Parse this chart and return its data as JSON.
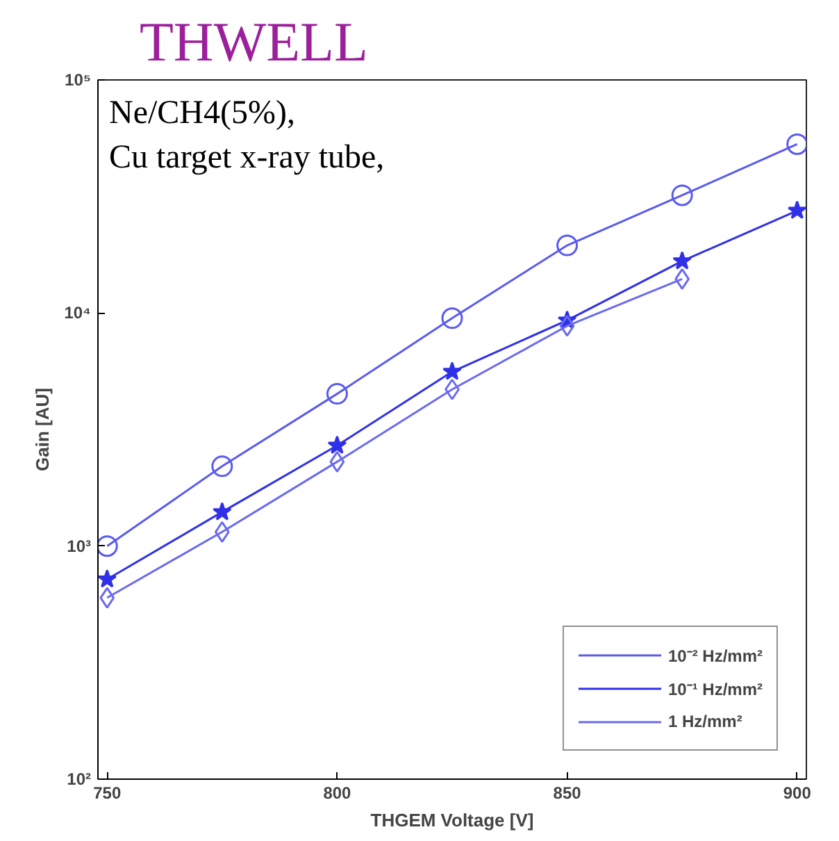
{
  "chart_data": {
    "type": "line",
    "title": "THWELL",
    "xlabel": "THGEM Voltage [V]",
    "ylabel": "Gain [AU]",
    "annotations": [
      "Ne/CH4(5%),",
      "Cu target x-ray tube,"
    ],
    "x": [
      750,
      775,
      800,
      825,
      850,
      875,
      900
    ],
    "series": [
      {
        "name": "10⁻² Hz/mm²",
        "color": "#5a5af0",
        "marker": "circle",
        "values": [
          1000,
          2200,
          4500,
          9500,
          19500,
          32000,
          53000
        ]
      },
      {
        "name": "10⁻¹ Hz/mm²",
        "color": "#3030e8",
        "marker": "star",
        "values": [
          720,
          1400,
          2700,
          5600,
          9300,
          16700,
          27500
        ]
      },
      {
        "name": "1 Hz/mm²",
        "color": "#6a6af0",
        "marker": "diamond",
        "values": [
          600,
          1150,
          2300,
          4700,
          8800,
          14000,
          null
        ]
      }
    ],
    "log": "y",
    "xlim": [
      748,
      902
    ],
    "ylim": [
      100,
      100000
    ],
    "xticks": [
      750,
      800,
      850,
      900
    ],
    "yticks": [
      {
        "value": 100,
        "label": "10²"
      },
      {
        "value": 1000,
        "label": "10³"
      },
      {
        "value": 10000,
        "label": "10⁴"
      },
      {
        "value": 100000,
        "label": "10⁵"
      }
    ],
    "grid": false,
    "legend": "bottom right",
    "line_style": "solid"
  }
}
